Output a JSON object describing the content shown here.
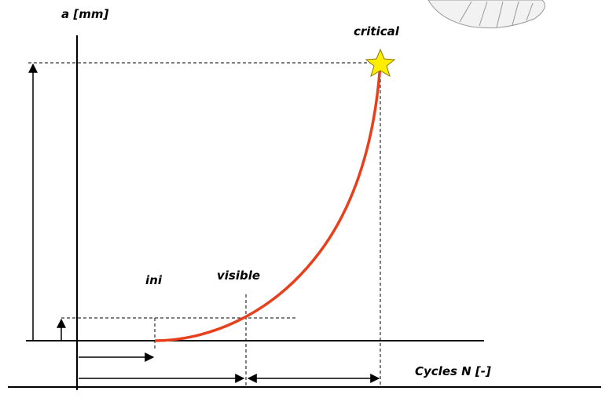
{
  "y_axis_label": "a [mm]",
  "x_axis_label": "Cycles N [-]",
  "points": {
    "critical": "critical",
    "ini": "ini",
    "visible": "visible"
  }
}
